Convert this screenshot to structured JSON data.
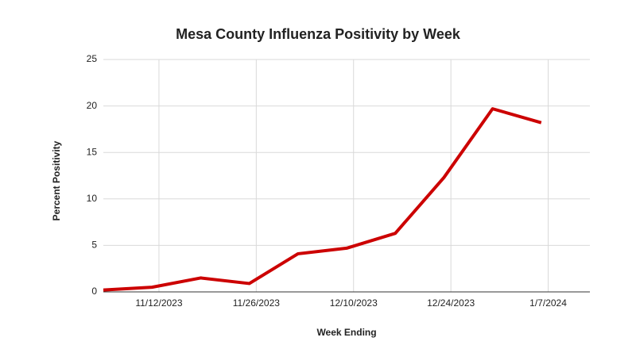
{
  "chart_data": {
    "type": "line",
    "title": "Mesa County Influenza Positivity by Week",
    "x_label": "Week Ending",
    "y_label": "Percent Positivity",
    "x": [
      "2023-11-04",
      "2023-11-11",
      "2023-11-18",
      "2023-11-25",
      "2023-12-02",
      "2023-12-09",
      "2023-12-16",
      "2023-12-23",
      "2023-12-30",
      "2024-01-06"
    ],
    "series": [
      {
        "name": "Percent Positivity",
        "color": "#cc0000",
        "values": [
          0.2,
          0.5,
          1.5,
          0.9,
          4.1,
          4.7,
          6.3,
          12.3,
          19.7,
          18.2
        ]
      }
    ],
    "xlim": [
      "2023-11-04",
      "2024-01-13"
    ],
    "xticks": [
      {
        "value": "2023-11-12",
        "label": "11/12/2023"
      },
      {
        "value": "2023-11-26",
        "label": "11/26/2023"
      },
      {
        "value": "2023-12-10",
        "label": "12/10/2023"
      },
      {
        "value": "2023-12-24",
        "label": "12/24/2023"
      },
      {
        "value": "2024-01-07",
        "label": "1/7/2024"
      }
    ],
    "ylim": [
      0,
      25
    ],
    "yticks": [
      0,
      5,
      10,
      15,
      20,
      25
    ],
    "grid": true
  }
}
